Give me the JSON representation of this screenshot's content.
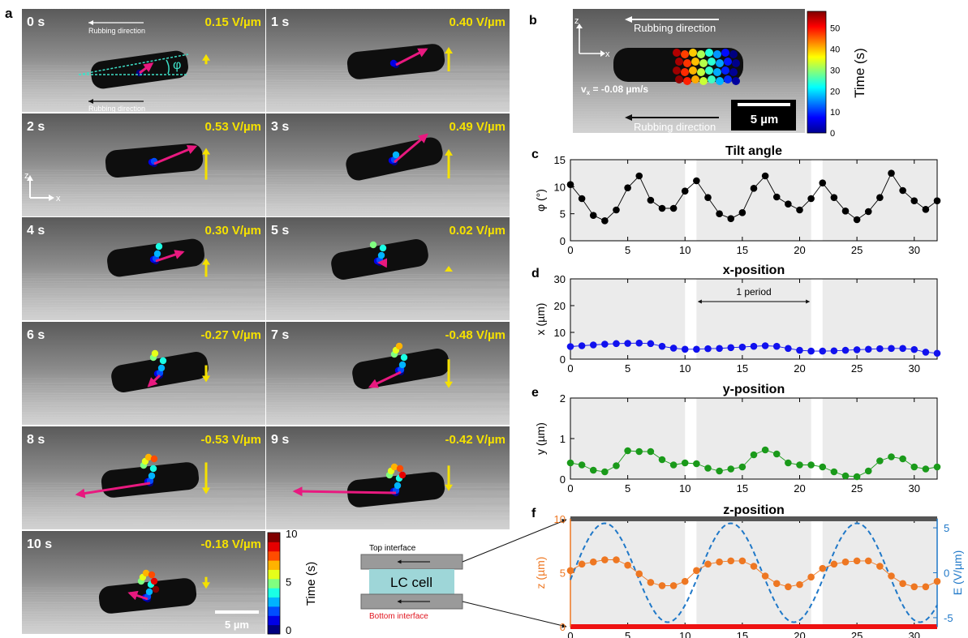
{
  "panel_a": {
    "label": "a",
    "frames": [
      {
        "time": "0 s",
        "field": "0.15 V/µm",
        "E": 0.15
      },
      {
        "time": "1 s",
        "field": "0.40 V/µm",
        "E": 0.4
      },
      {
        "time": "2 s",
        "field": "0.53 V/µm",
        "E": 0.53
      },
      {
        "time": "3 s",
        "field": "0.49 V/µm",
        "E": 0.49
      },
      {
        "time": "4 s",
        "field": "0.30 V/µm",
        "E": 0.3
      },
      {
        "time": "5 s",
        "field": "0.02 V/µm",
        "E": 0.02
      },
      {
        "time": "6 s",
        "field": "-0.27 V/µm",
        "E": -0.27
      },
      {
        "time": "7 s",
        "field": "-0.48 V/µm",
        "E": -0.48
      },
      {
        "time": "8 s",
        "field": "-0.53 V/µm",
        "E": -0.53
      },
      {
        "time": "9 s",
        "field": "-0.42 V/µm",
        "E": -0.42
      },
      {
        "time": "10 s",
        "field": "-0.18 V/µm",
        "E": -0.18
      }
    ],
    "rubbing_label": "Rubbing direction",
    "phi_symbol": "φ",
    "axis_z": "z",
    "axis_x": "x",
    "scale_bar": "5 µm",
    "colorbar": {
      "label": "Time (s)",
      "ticks": [
        "0",
        "5",
        "10"
      ]
    }
  },
  "panel_b": {
    "label": "b",
    "rubbing_top": "Rubbing direction",
    "rubbing_bottom": "Rubbing direction",
    "velocity": "v",
    "velocity_sub": "x",
    "velocity_value": " = -0.08 µm/s",
    "scale_bar": "5 µm",
    "axis_z": "z",
    "axis_x": "x",
    "colorbar": {
      "label": "Time (s)",
      "ticks": [
        "0",
        "10",
        "20",
        "30",
        "40",
        "50"
      ]
    }
  },
  "schematic": {
    "top": "Top interface",
    "cell": "LC cell",
    "bottom": "Bottom interface"
  },
  "chart_data": [
    {
      "id": "c",
      "label": "c",
      "type": "line",
      "title": "Tilt angle",
      "ylabel": "φ (°)",
      "xlabel": "",
      "xlim": [
        0,
        32
      ],
      "ylim": [
        0,
        15
      ],
      "xticks": [
        "0",
        "5",
        "10",
        "15",
        "20",
        "25",
        "30"
      ],
      "yticks": [
        "0",
        "5",
        "10",
        "15"
      ],
      "series": [
        {
          "color": "#000000",
          "x": [
            0,
            1,
            2,
            3,
            4,
            5,
            6,
            7,
            8,
            9,
            10,
            11,
            12,
            13,
            14,
            15,
            16,
            17,
            18,
            19,
            20,
            21,
            22,
            23,
            24,
            25,
            26,
            27,
            28,
            29,
            30,
            31,
            32
          ],
          "y": [
            10.4,
            7.8,
            4.7,
            3.7,
            5.7,
            9.8,
            12,
            7.5,
            6,
            6,
            9.2,
            11.1,
            8,
            5,
            4.1,
            5.2,
            9.7,
            12,
            8.1,
            6.8,
            5.7,
            7.8,
            10.7,
            8,
            5.5,
            3.9,
            5.4,
            8,
            12.5,
            9.3,
            7.4,
            5.8,
            7.4
          ]
        }
      ]
    },
    {
      "id": "d",
      "label": "d",
      "type": "scatter",
      "title": "x-position",
      "ylabel": "x  (µm)",
      "xlabel": "",
      "xlim": [
        0,
        32
      ],
      "ylim": [
        0,
        30
      ],
      "xticks": [
        "0",
        "5",
        "10",
        "15",
        "20",
        "25",
        "30"
      ],
      "yticks": [
        "0",
        "10",
        "20",
        "30"
      ],
      "annotation": "1 period",
      "series": [
        {
          "color": "#1111ee",
          "x": [
            0,
            1,
            2,
            3,
            4,
            5,
            6,
            7,
            8,
            9,
            10,
            11,
            12,
            13,
            14,
            15,
            16,
            17,
            18,
            19,
            20,
            21,
            22,
            23,
            24,
            25,
            26,
            27,
            28,
            29,
            30,
            31,
            32
          ],
          "y": [
            4.7,
            5,
            5.3,
            5.6,
            5.8,
            5.9,
            6,
            5.8,
            4.8,
            4.1,
            3.7,
            3.7,
            3.9,
            4,
            4.3,
            4.5,
            4.8,
            5,
            4.8,
            4,
            3.3,
            3,
            3,
            3.1,
            3.3,
            3.5,
            3.7,
            3.9,
            4,
            4,
            3.6,
            2.6,
            2.2
          ]
        }
      ]
    },
    {
      "id": "e",
      "label": "e",
      "type": "line",
      "title": "y-position",
      "ylabel": "y  (µm)",
      "xlabel": "",
      "xlim": [
        0,
        32
      ],
      "ylim": [
        0,
        2
      ],
      "xticks": [
        "0",
        "5",
        "10",
        "15",
        "20",
        "25",
        "30"
      ],
      "yticks": [
        "0",
        "1",
        "2"
      ],
      "series": [
        {
          "color": "#1a9a1a",
          "x": [
            0,
            1,
            2,
            3,
            4,
            5,
            6,
            7,
            8,
            9,
            10,
            11,
            12,
            13,
            14,
            15,
            16,
            17,
            18,
            19,
            20,
            21,
            22,
            23,
            24,
            25,
            26,
            27,
            28,
            29,
            30,
            31,
            32
          ],
          "y": [
            0.4,
            0.35,
            0.22,
            0.18,
            0.33,
            0.7,
            0.68,
            0.68,
            0.48,
            0.35,
            0.4,
            0.38,
            0.27,
            0.2,
            0.25,
            0.3,
            0.6,
            0.72,
            0.62,
            0.4,
            0.35,
            0.35,
            0.3,
            0.18,
            0.08,
            0.06,
            0.2,
            0.45,
            0.55,
            0.5,
            0.3,
            0.25,
            0.3
          ]
        }
      ]
    },
    {
      "id": "f",
      "label": "f",
      "type": "line",
      "title": "z-position",
      "ylabel": "z  (µm)",
      "xlabel": "Time (s)",
      "y2label": "E (V/µm)",
      "xlim": [
        0,
        32
      ],
      "ylim": [
        0,
        10
      ],
      "y2lim": [
        -6,
        6
      ],
      "xticks": [
        "0",
        "5",
        "10",
        "15",
        "20",
        "25",
        "30"
      ],
      "yticks": [
        "0",
        "5",
        "10"
      ],
      "y2ticks": [
        "5",
        "0",
        "-5"
      ],
      "series": [
        {
          "name": "z",
          "color": "#ee7722",
          "axis": "left",
          "x": [
            0,
            1,
            2,
            3,
            4,
            5,
            6,
            7,
            8,
            9,
            10,
            11,
            12,
            13,
            14,
            15,
            16,
            17,
            18,
            19,
            20,
            21,
            22,
            23,
            24,
            25,
            26,
            27,
            28,
            29,
            30,
            31,
            32
          ],
          "y": [
            5.2,
            5.8,
            6,
            6.2,
            6.2,
            5.7,
            4.9,
            4.1,
            3.8,
            3.8,
            4.2,
            5.2,
            5.8,
            6,
            6.1,
            6.1,
            5.6,
            4.7,
            4,
            3.7,
            3.9,
            4.6,
            5.4,
            5.8,
            6,
            6.1,
            6.1,
            5.6,
            4.7,
            4,
            3.7,
            3.7,
            4.2
          ]
        },
        {
          "name": "E",
          "color": "#1f78c8",
          "axis": "right",
          "style": "dashed",
          "function": "E = 5.5 sin(2π (t - 0.25) / 11)",
          "amplitude": 5.5,
          "period": 11,
          "phase": 0.25
        }
      ],
      "shaded_gaps": [
        [
          10,
          11
        ],
        [
          21,
          22
        ]
      ]
    }
  ]
}
